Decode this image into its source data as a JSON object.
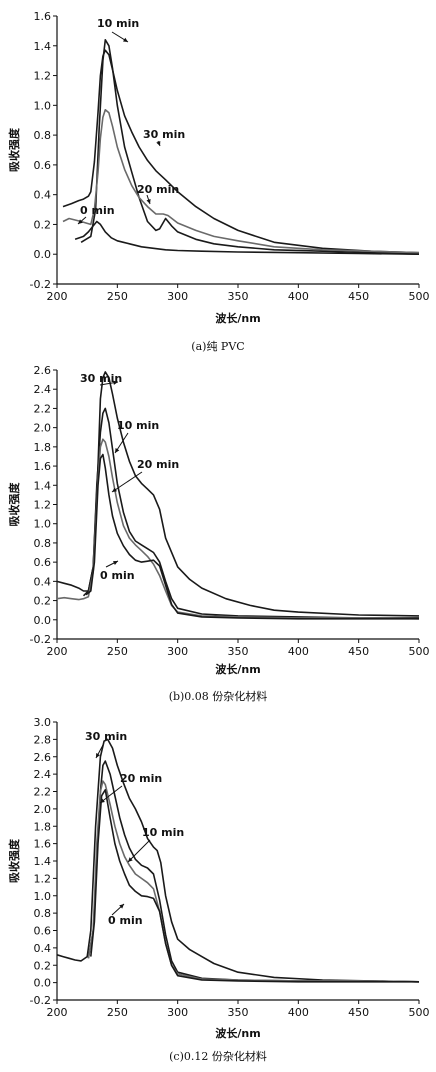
{
  "chart_data": [
    {
      "type": "line",
      "caption": "(a)纯 PVC",
      "xlabel": "波长/nm",
      "ylabel": "吸收强度",
      "xlim": [
        200,
        500
      ],
      "ylim": [
        -0.2,
        1.6
      ],
      "xticks": [
        200,
        250,
        300,
        350,
        400,
        450,
        500
      ],
      "yticks": [
        -0.2,
        0.0,
        0.2,
        0.4,
        0.6,
        0.8,
        1.0,
        1.2,
        1.4,
        1.6
      ],
      "series": [
        {
          "color": "#1a1a1a",
          "x": [
            205,
            212,
            218,
            222,
            226,
            228,
            231,
            234,
            236,
            238,
            240,
            243,
            246,
            250,
            256,
            262,
            268,
            275,
            282,
            290,
            300,
            315,
            330,
            350,
            380,
            420,
            460,
            500
          ],
          "y": [
            0.32,
            0.34,
            0.36,
            0.37,
            0.39,
            0.42,
            0.62,
            0.95,
            1.2,
            1.33,
            1.37,
            1.34,
            1.24,
            1.1,
            0.93,
            0.82,
            0.72,
            0.63,
            0.56,
            0.5,
            0.42,
            0.32,
            0.24,
            0.16,
            0.08,
            0.04,
            0.02,
            0.01
          ]
        },
        {
          "color": "#1a1a1a",
          "x": [
            220,
            224,
            228,
            232,
            235,
            238,
            240,
            243,
            246,
            250,
            256,
            262,
            268,
            275,
            282,
            285,
            290,
            295,
            300,
            315,
            330,
            350,
            380,
            420,
            460,
            500
          ],
          "y": [
            0.08,
            0.1,
            0.12,
            0.3,
            0.85,
            1.3,
            1.44,
            1.4,
            1.25,
            1.0,
            0.72,
            0.55,
            0.38,
            0.22,
            0.16,
            0.17,
            0.24,
            0.19,
            0.15,
            0.1,
            0.07,
            0.05,
            0.03,
            0.02,
            0.01,
            0.0
          ]
        },
        {
          "color": "#6a6a6a",
          "x": [
            205,
            210,
            215,
            220,
            224,
            228,
            231,
            234,
            236,
            238,
            240,
            243,
            246,
            250,
            256,
            262,
            268,
            275,
            282,
            288,
            292,
            300,
            315,
            330,
            350,
            380,
            420,
            460,
            500
          ],
          "y": [
            0.22,
            0.24,
            0.23,
            0.22,
            0.21,
            0.2,
            0.3,
            0.55,
            0.78,
            0.92,
            0.97,
            0.95,
            0.86,
            0.72,
            0.57,
            0.46,
            0.38,
            0.32,
            0.27,
            0.27,
            0.26,
            0.21,
            0.16,
            0.12,
            0.09,
            0.05,
            0.03,
            0.02,
            0.01
          ]
        },
        {
          "color": "#1a1a1a",
          "x": [
            215,
            222,
            226,
            230,
            233,
            236,
            240,
            245,
            250,
            255,
            260,
            270,
            280,
            290,
            300,
            320,
            350,
            400,
            450,
            500
          ],
          "y": [
            0.1,
            0.12,
            0.15,
            0.19,
            0.22,
            0.2,
            0.15,
            0.11,
            0.09,
            0.08,
            0.07,
            0.05,
            0.04,
            0.03,
            0.025,
            0.02,
            0.015,
            0.01,
            0.005,
            0.0
          ]
        }
      ],
      "annotations": [
        "10 min",
        "30 min",
        "20 min",
        "0 min"
      ]
    },
    {
      "type": "line",
      "caption": "(b)0.08 份杂化材料",
      "xlabel": "波长/nm",
      "ylabel": "吸收强度",
      "xlim": [
        200,
        500
      ],
      "ylim": [
        -0.2,
        2.6
      ],
      "xticks": [
        200,
        250,
        300,
        350,
        400,
        450,
        500
      ],
      "yticks": [
        -0.2,
        0.0,
        0.2,
        0.4,
        0.6,
        0.8,
        1.0,
        1.2,
        1.4,
        1.6,
        1.8,
        2.0,
        2.2,
        2.4,
        2.6
      ],
      "series": [
        {
          "color": "#1a1a1a",
          "x": [
            200,
            206,
            212,
            218,
            222,
            226,
            230,
            234,
            236,
            238,
            240,
            243,
            246,
            250,
            255,
            260,
            265,
            270,
            275,
            280,
            285,
            290,
            300,
            310,
            320,
            340,
            360,
            380,
            400,
            450,
            500
          ],
          "y": [
            0.4,
            0.38,
            0.36,
            0.33,
            0.3,
            0.3,
            0.55,
            1.6,
            2.3,
            2.52,
            2.58,
            2.52,
            2.35,
            2.1,
            1.85,
            1.65,
            1.5,
            1.42,
            1.36,
            1.3,
            1.15,
            0.85,
            0.55,
            0.42,
            0.33,
            0.22,
            0.15,
            0.1,
            0.08,
            0.05,
            0.04
          ]
        },
        {
          "color": "#1a1a1a",
          "x": [
            222,
            226,
            230,
            233,
            236,
            238,
            240,
            243,
            246,
            250,
            255,
            260,
            265,
            270,
            275,
            280,
            285,
            290,
            295,
            300,
            320,
            350,
            400,
            450,
            500
          ],
          "y": [
            0.25,
            0.3,
            0.55,
            1.4,
            1.95,
            2.15,
            2.2,
            2.05,
            1.78,
            1.42,
            1.12,
            0.92,
            0.82,
            0.78,
            0.74,
            0.7,
            0.6,
            0.4,
            0.22,
            0.12,
            0.06,
            0.04,
            0.03,
            0.02,
            0.02
          ]
        },
        {
          "color": "#6a6a6a",
          "x": [
            200,
            206,
            212,
            218,
            222,
            226,
            230,
            234,
            236,
            238,
            240,
            243,
            246,
            250,
            255,
            260,
            265,
            270,
            275,
            280,
            285,
            290,
            295,
            300,
            320,
            350,
            400,
            450,
            500
          ],
          "y": [
            0.22,
            0.23,
            0.22,
            0.21,
            0.22,
            0.24,
            0.5,
            1.45,
            1.8,
            1.88,
            1.85,
            1.7,
            1.48,
            1.22,
            0.98,
            0.85,
            0.78,
            0.72,
            0.66,
            0.58,
            0.46,
            0.3,
            0.15,
            0.08,
            0.04,
            0.03,
            0.02,
            0.02,
            0.01
          ]
        },
        {
          "color": "#1a1a1a",
          "x": [
            224,
            228,
            231,
            234,
            236,
            238,
            240,
            243,
            246,
            250,
            255,
            260,
            265,
            270,
            275,
            280,
            285,
            290,
            295,
            300,
            320,
            350,
            400,
            450,
            500
          ],
          "y": [
            0.26,
            0.3,
            0.6,
            1.4,
            1.68,
            1.72,
            1.58,
            1.3,
            1.08,
            0.9,
            0.77,
            0.68,
            0.62,
            0.6,
            0.61,
            0.62,
            0.56,
            0.36,
            0.16,
            0.07,
            0.03,
            0.02,
            0.01,
            0.01,
            0.01
          ]
        }
      ],
      "annotations": [
        "30 min",
        "10 min",
        "20 min",
        "0 min"
      ]
    },
    {
      "type": "line",
      "caption": "(c)0.12 份杂化材料",
      "xlabel": "波长/nm",
      "ylabel": "吸收强度",
      "xlim": [
        200,
        500
      ],
      "ylim": [
        -0.2,
        3.0
      ],
      "xticks": [
        200,
        250,
        300,
        350,
        400,
        450,
        500
      ],
      "yticks": [
        -0.2,
        0.0,
        0.2,
        0.4,
        0.6,
        0.8,
        1.0,
        1.2,
        1.4,
        1.6,
        1.8,
        2.0,
        2.2,
        2.4,
        2.6,
        2.8,
        3.0
      ],
      "series": [
        {
          "color": "#1a1a1a",
          "x": [
            200,
            205,
            210,
            215,
            220,
            225,
            228,
            232,
            236,
            239,
            242,
            246,
            250,
            255,
            260,
            265,
            270,
            275,
            280,
            283,
            286,
            290,
            295,
            300,
            310,
            320,
            330,
            350,
            380,
            420,
            460,
            500
          ],
          "y": [
            0.32,
            0.3,
            0.28,
            0.26,
            0.25,
            0.3,
            0.6,
            1.8,
            2.6,
            2.78,
            2.8,
            2.7,
            2.5,
            2.3,
            2.12,
            2.0,
            1.85,
            1.66,
            1.56,
            1.52,
            1.38,
            1.0,
            0.7,
            0.5,
            0.38,
            0.3,
            0.22,
            0.12,
            0.06,
            0.03,
            0.02,
            0.01
          ]
        },
        {
          "color": "#1a1a1a",
          "x": [
            226,
            230,
            234,
            236,
            238,
            240,
            244,
            248,
            252,
            256,
            260,
            265,
            270,
            275,
            280,
            285,
            290,
            295,
            300,
            320,
            350,
            400,
            450,
            500
          ],
          "y": [
            0.28,
            0.6,
            1.7,
            2.2,
            2.5,
            2.55,
            2.4,
            2.15,
            1.9,
            1.7,
            1.55,
            1.42,
            1.35,
            1.32,
            1.25,
            0.95,
            0.55,
            0.25,
            0.12,
            0.05,
            0.03,
            0.02,
            0.02,
            0.01
          ]
        },
        {
          "color": "#6a6a6a",
          "x": [
            226,
            230,
            233,
            236,
            238,
            240,
            244,
            248,
            252,
            256,
            260,
            265,
            270,
            275,
            280,
            285,
            290,
            295,
            300,
            320,
            350,
            400,
            450,
            500
          ],
          "y": [
            0.28,
            0.6,
            1.6,
            2.2,
            2.32,
            2.28,
            2.05,
            1.8,
            1.6,
            1.45,
            1.35,
            1.25,
            1.2,
            1.15,
            1.08,
            0.82,
            0.45,
            0.2,
            0.1,
            0.04,
            0.03,
            0.02,
            0.02,
            0.01
          ]
        },
        {
          "color": "#1a1a1a",
          "x": [
            228,
            231,
            234,
            237,
            240,
            244,
            248,
            252,
            256,
            260,
            265,
            270,
            275,
            280,
            285,
            290,
            295,
            300,
            320,
            350,
            400,
            450,
            500
          ],
          "y": [
            0.3,
            0.7,
            1.6,
            2.15,
            2.22,
            1.9,
            1.6,
            1.4,
            1.25,
            1.12,
            1.05,
            1.0,
            0.99,
            0.97,
            0.82,
            0.45,
            0.2,
            0.08,
            0.03,
            0.02,
            0.01,
            0.01,
            0.01
          ]
        }
      ],
      "annotations": [
        "30 min",
        "20 min",
        "10 min",
        "0 min"
      ]
    }
  ]
}
